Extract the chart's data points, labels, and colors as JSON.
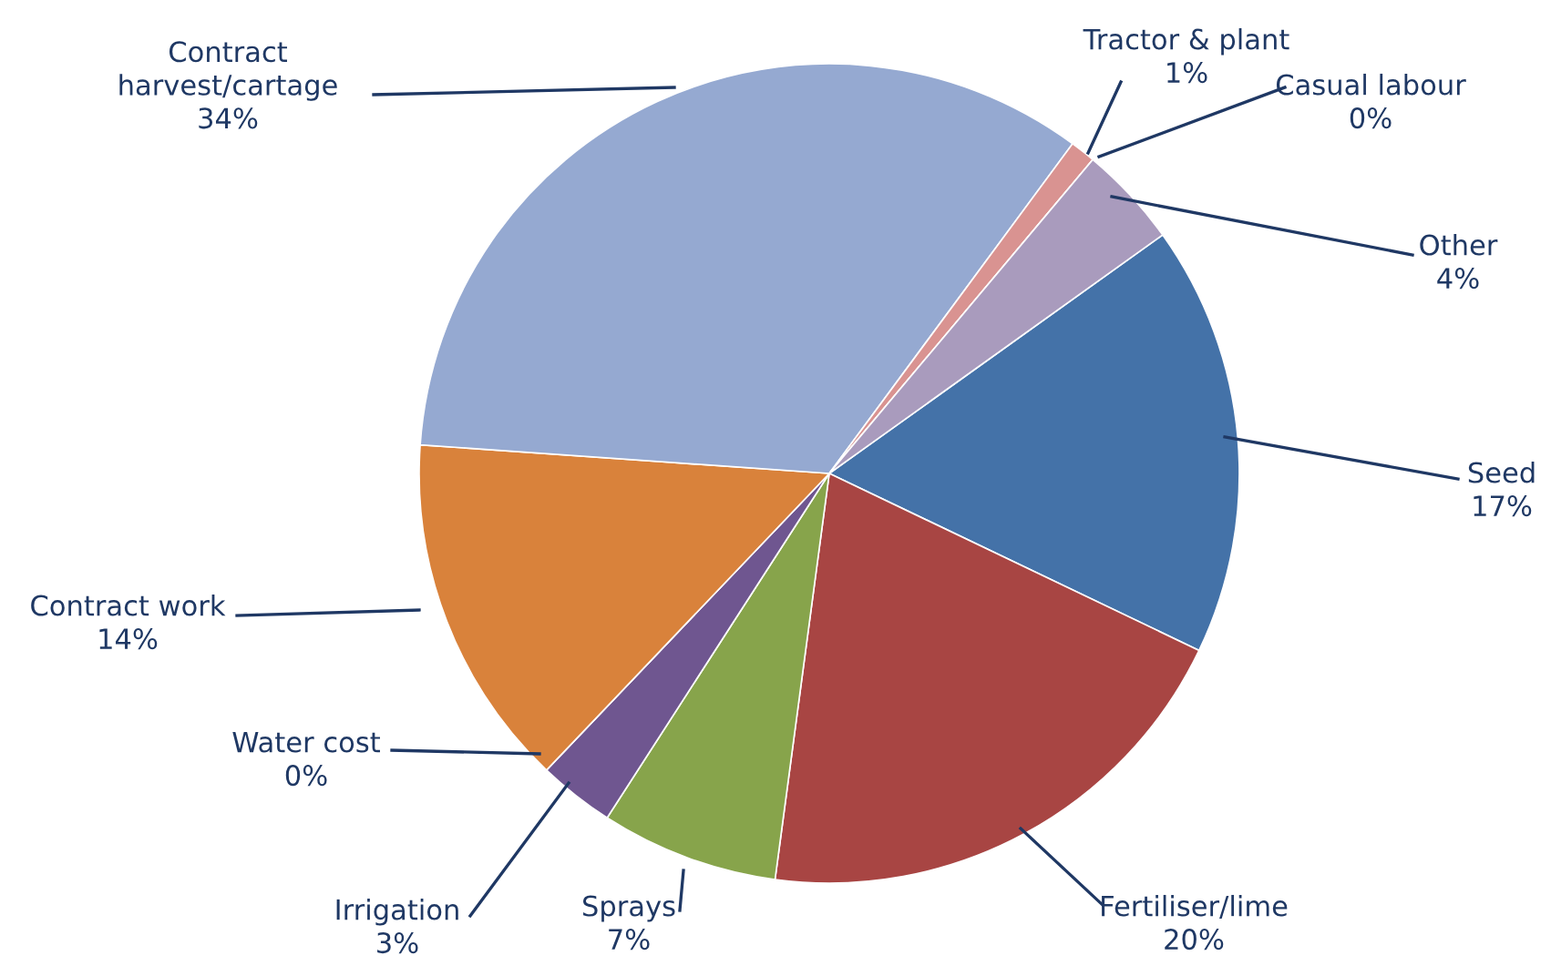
{
  "chart_data": {
    "type": "pie",
    "categories": [
      "Seed",
      "Fertiliser/lime",
      "Sprays",
      "Irrigation",
      "Water cost",
      "Contract work",
      "Contract\nharvest/cartage",
      "Tractor & plant",
      "Casual labour",
      "Other"
    ],
    "values": [
      17,
      20,
      7,
      3,
      0,
      14,
      34,
      1,
      0,
      4
    ],
    "colors": [
      "#4472a8",
      "#a84543",
      "#87a44b",
      "#6f5690",
      "#3d9bb0",
      "#d9823b",
      "#95a9d1",
      "#d99391",
      "#b9cf93",
      "#a99bbd"
    ],
    "value_labels": [
      "17%",
      "20%",
      "7%",
      "3%",
      "0%",
      "14%",
      "34%",
      "1%",
      "0%",
      "4%"
    ]
  }
}
